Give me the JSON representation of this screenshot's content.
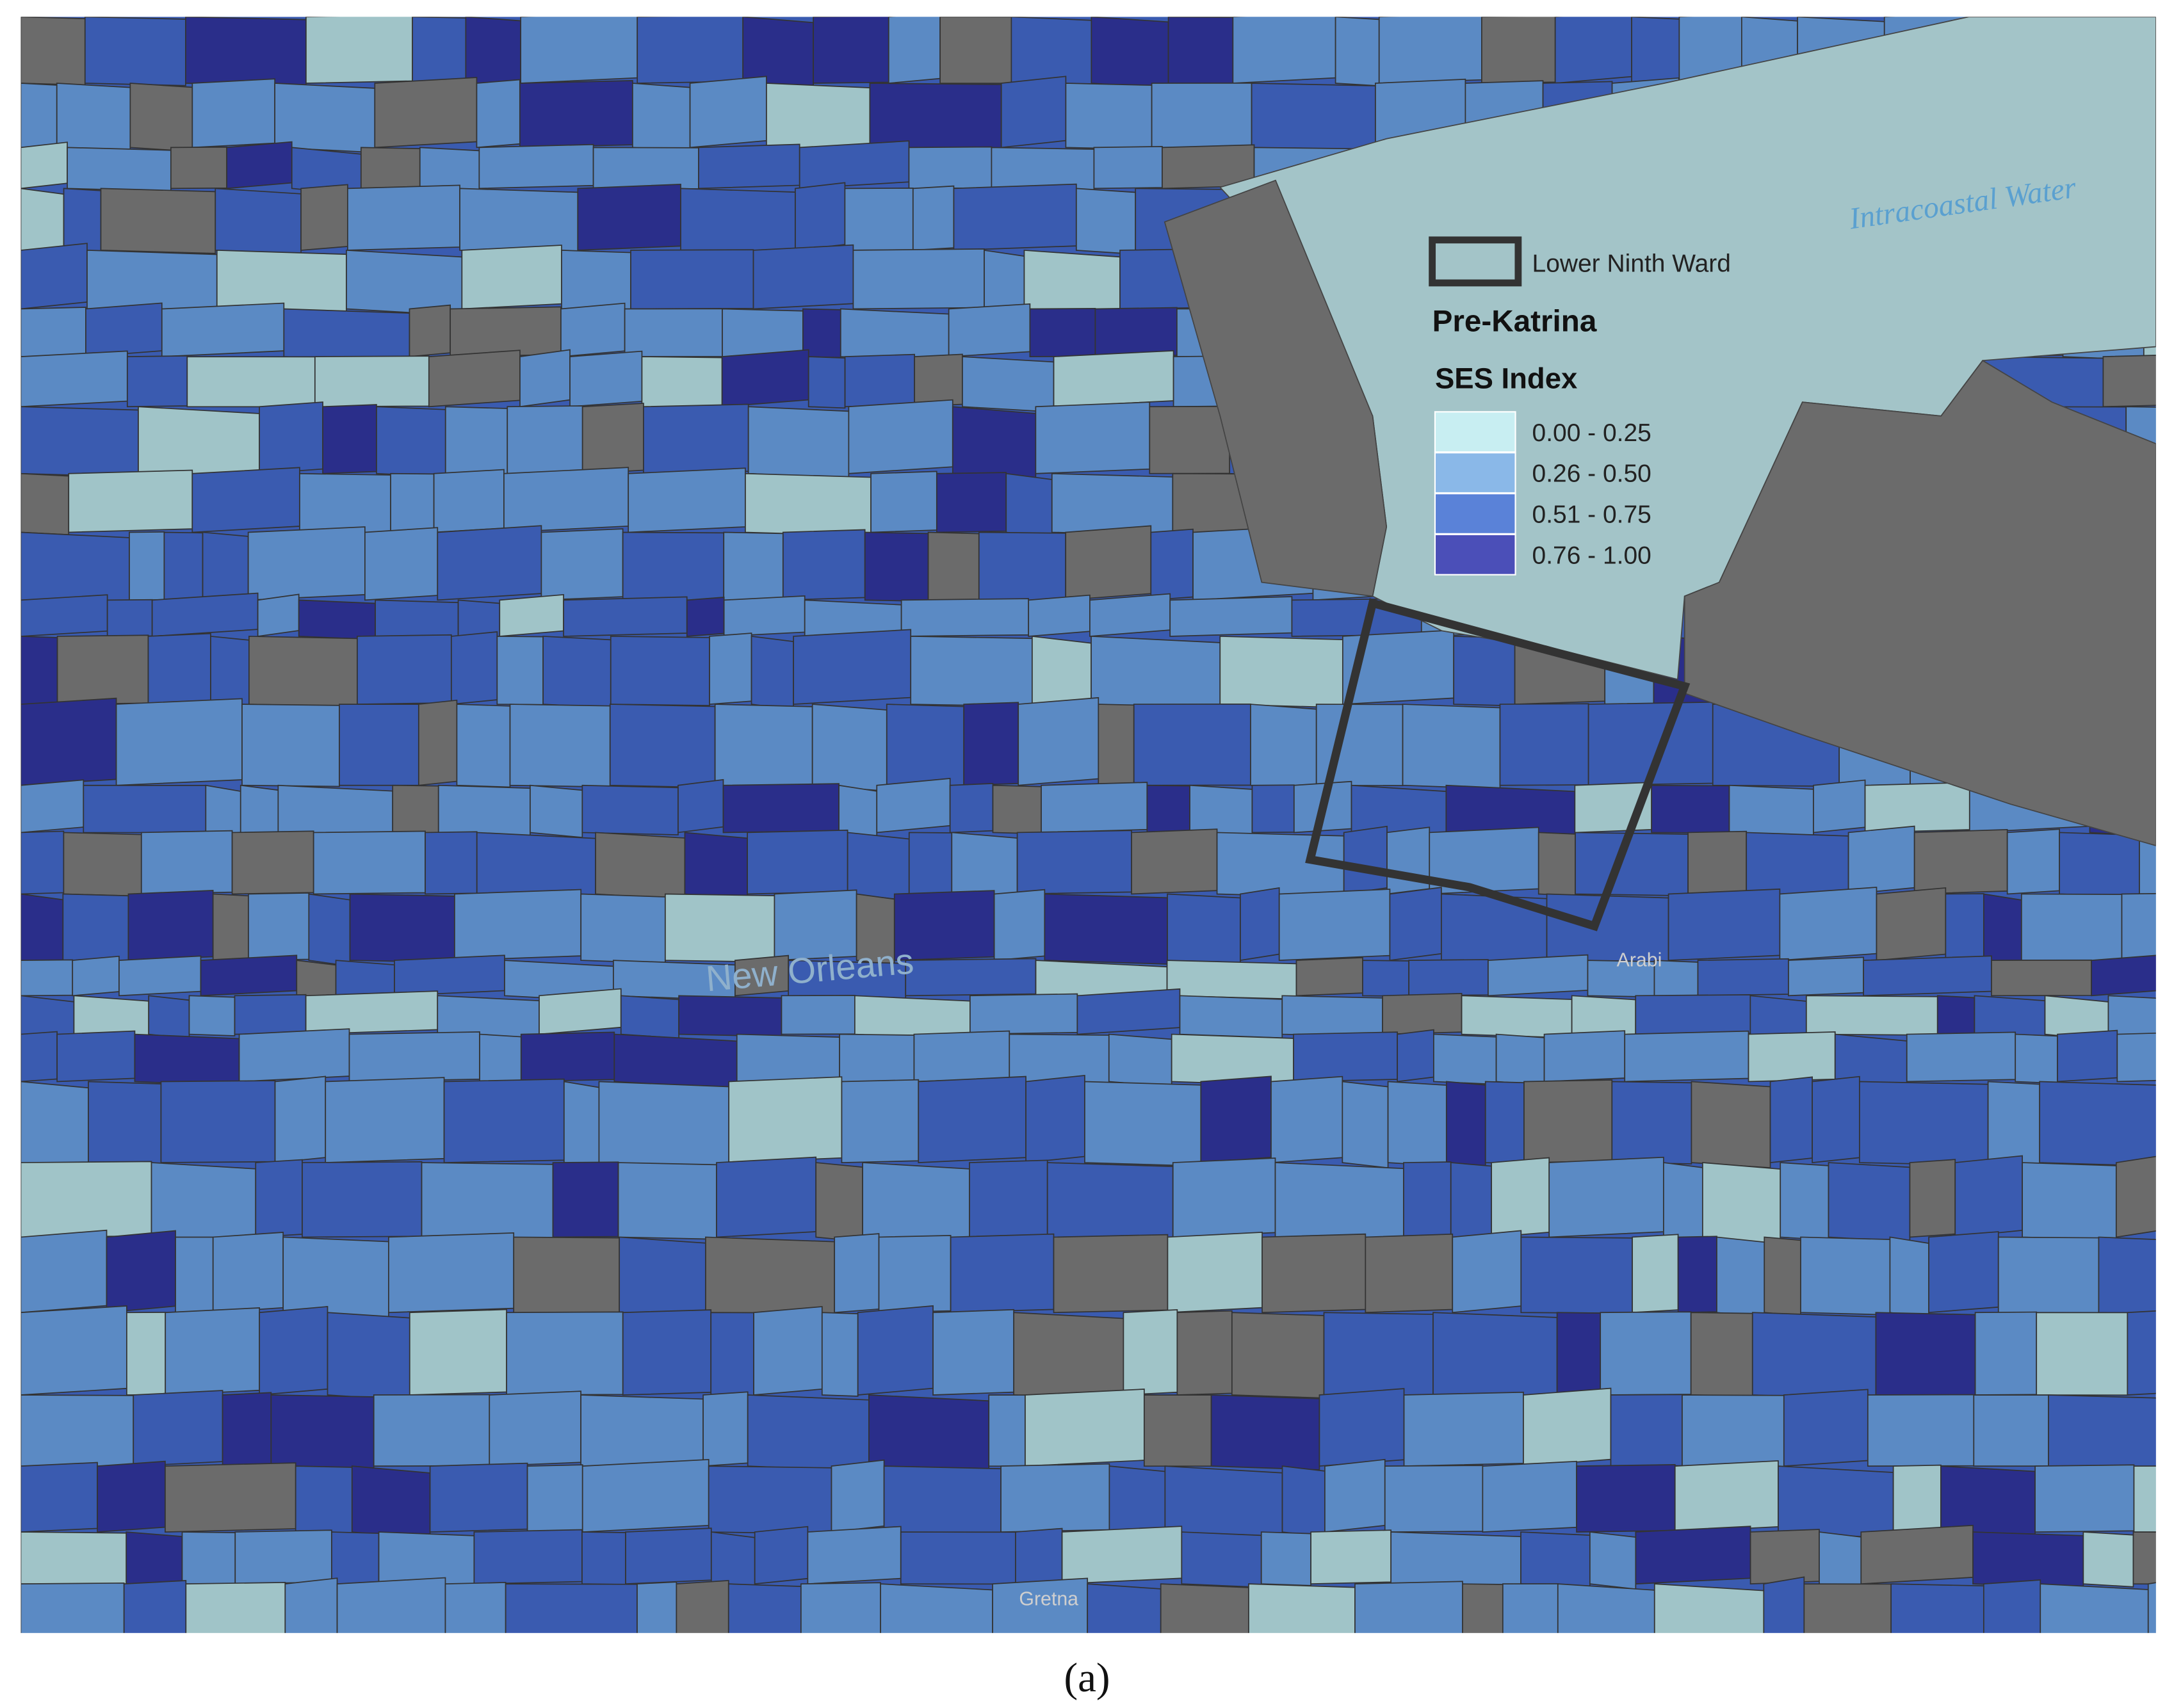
{
  "map": {
    "water_label": "Intracoastal Water",
    "place_labels": [
      "New Orleans",
      "Arabi",
      "Gretna"
    ],
    "legend": {
      "outline_label": "Lower Ninth Ward",
      "title": "Pre-Katrina",
      "subtitle": "SES Index",
      "classes": [
        {
          "label": "0.00 - 0.25",
          "color": "#c8eef2"
        },
        {
          "label": "0.26 - 0.50",
          "color": "#8ab8e8"
        },
        {
          "label": "0.51 - 0.75",
          "color": "#5a82d8"
        },
        {
          "label": "0.76 - 1.00",
          "color": "#4b4fb8"
        }
      ]
    }
  },
  "caption": "(a)"
}
